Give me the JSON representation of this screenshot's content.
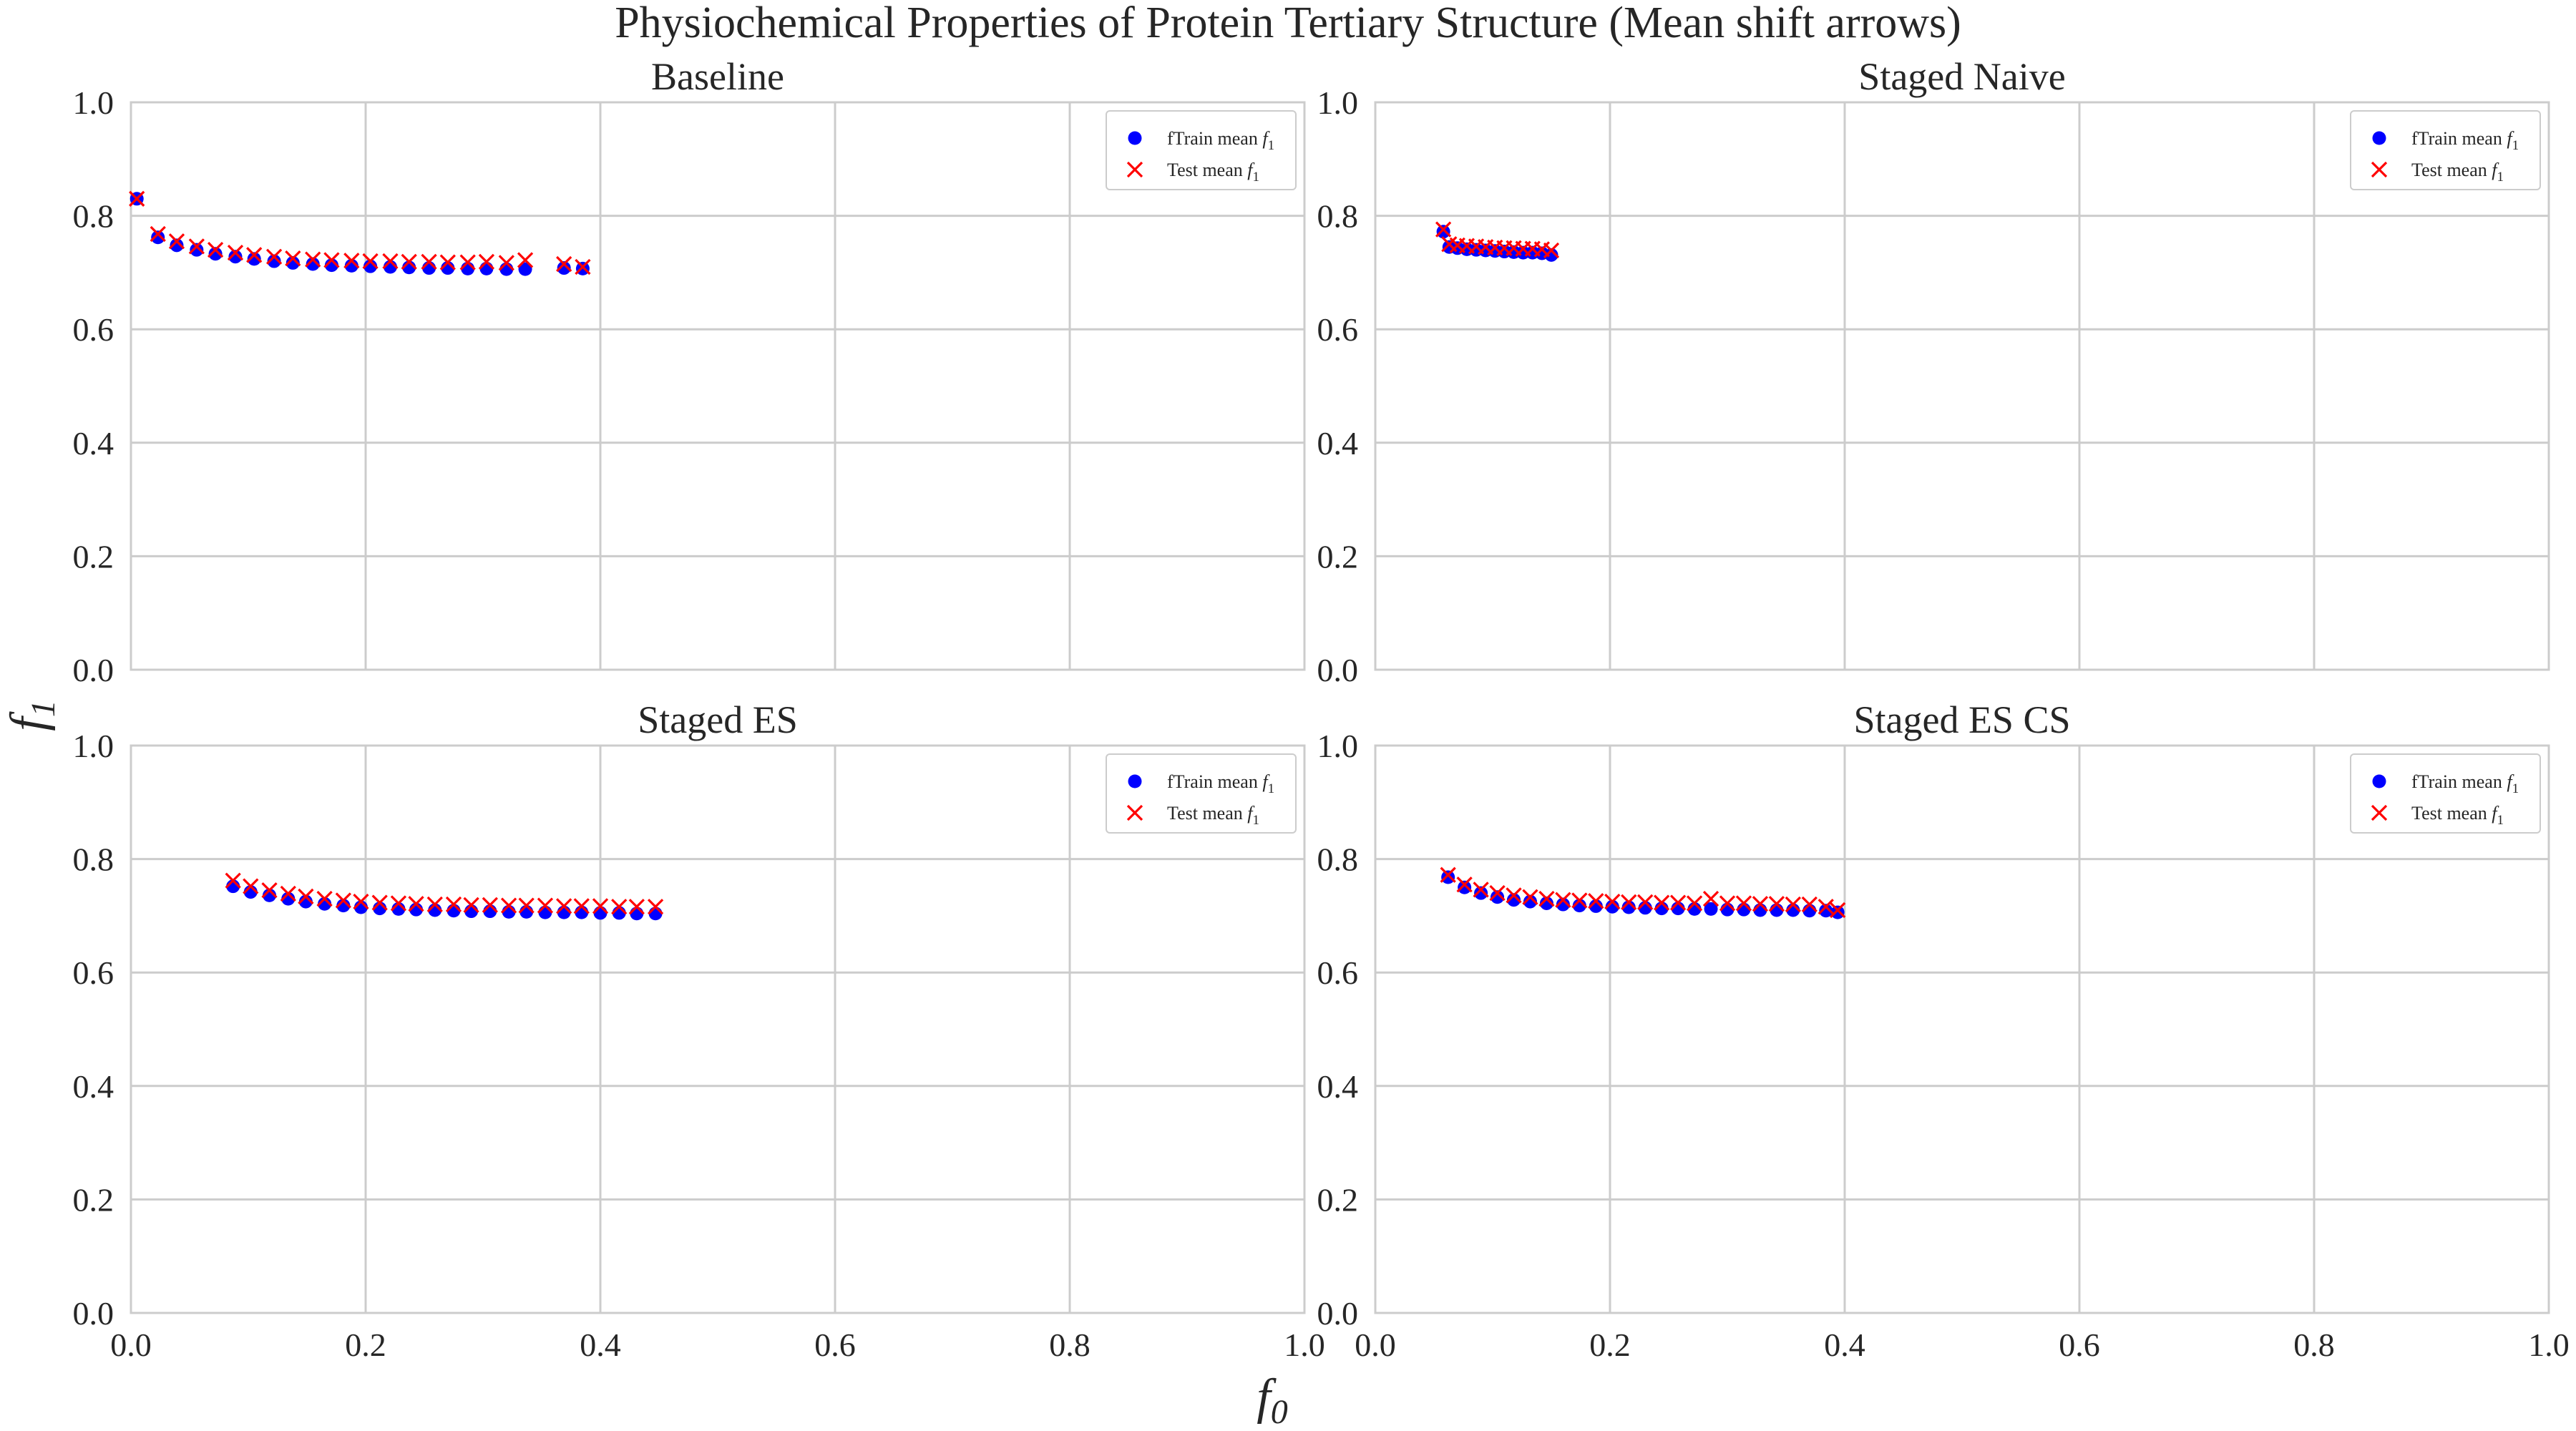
{
  "figure": {
    "title": "Physiochemical Properties of Protein Tertiary Structure (Mean shift arrows)",
    "xlabel": "f",
    "xlabel_sub": "0",
    "ylabel": "f",
    "ylabel_sub": "1"
  },
  "legend": {
    "train_label": "fTrain mean ",
    "test_label": "Test mean ",
    "label_math": "f",
    "label_sub": "1",
    "placement": "top-right"
  },
  "colors": {
    "train": "#0000ff",
    "test": "#ff0000",
    "grid": "#cccccc"
  },
  "chart_data": [
    {
      "type": "scatter",
      "title": "Baseline",
      "xlim": [
        0,
        1
      ],
      "ylim": [
        0,
        1
      ],
      "xticks": [
        "0.0",
        "0.2",
        "0.4",
        "0.6",
        "0.8",
        "1.0"
      ],
      "yticks": [
        "0.0",
        "0.2",
        "0.4",
        "0.6",
        "0.8",
        "1.0"
      ],
      "grid": true,
      "series": [
        {
          "name": "fTrain mean f1",
          "marker": "circle",
          "x": [
            0.005,
            0.023,
            0.039,
            0.056,
            0.072,
            0.089,
            0.105,
            0.122,
            0.138,
            0.155,
            0.171,
            0.188,
            0.204,
            0.221,
            0.237,
            0.254,
            0.27,
            0.287,
            0.303,
            0.32,
            0.336,
            0.369,
            0.385
          ],
          "y": [
            0.83,
            0.762,
            0.748,
            0.74,
            0.733,
            0.728,
            0.724,
            0.72,
            0.717,
            0.715,
            0.713,
            0.712,
            0.711,
            0.71,
            0.709,
            0.708,
            0.708,
            0.707,
            0.707,
            0.706,
            0.706,
            0.708,
            0.707
          ]
        },
        {
          "name": "Test mean f1",
          "marker": "x",
          "x": [
            0.005,
            0.023,
            0.039,
            0.056,
            0.072,
            0.089,
            0.105,
            0.122,
            0.138,
            0.155,
            0.171,
            0.188,
            0.204,
            0.221,
            0.237,
            0.254,
            0.27,
            0.287,
            0.303,
            0.32,
            0.336,
            0.369,
            0.385
          ],
          "y": [
            0.83,
            0.768,
            0.755,
            0.746,
            0.74,
            0.735,
            0.731,
            0.728,
            0.725,
            0.723,
            0.722,
            0.721,
            0.72,
            0.72,
            0.719,
            0.719,
            0.718,
            0.718,
            0.719,
            0.717,
            0.722,
            0.715,
            0.71
          ]
        }
      ]
    },
    {
      "type": "scatter",
      "title": "Staged Naive",
      "xlim": [
        0,
        1
      ],
      "ylim": [
        0,
        1
      ],
      "xticks": [
        "0.0",
        "0.2",
        "0.4",
        "0.6",
        "0.8",
        "1.0"
      ],
      "yticks": [
        "0.0",
        "0.2",
        "0.4",
        "0.6",
        "0.8",
        "1.0"
      ],
      "grid": true,
      "series": [
        {
          "name": "fTrain mean f1",
          "marker": "circle",
          "x": [
            0.058,
            0.063,
            0.07,
            0.078,
            0.086,
            0.094,
            0.102,
            0.11,
            0.118,
            0.126,
            0.134,
            0.142,
            0.15
          ],
          "y": [
            0.772,
            0.745,
            0.743,
            0.741,
            0.74,
            0.739,
            0.738,
            0.737,
            0.736,
            0.735,
            0.735,
            0.734,
            0.731
          ]
        },
        {
          "name": "Test mean f1",
          "marker": "x",
          "x": [
            0.058,
            0.063,
            0.07,
            0.078,
            0.086,
            0.094,
            0.102,
            0.11,
            0.118,
            0.126,
            0.134,
            0.142,
            0.15
          ],
          "y": [
            0.776,
            0.75,
            0.748,
            0.747,
            0.746,
            0.745,
            0.744,
            0.743,
            0.743,
            0.742,
            0.742,
            0.741,
            0.739
          ]
        }
      ]
    },
    {
      "type": "scatter",
      "title": "Staged ES",
      "xlim": [
        0,
        1
      ],
      "ylim": [
        0,
        1
      ],
      "xticks": [
        "0.0",
        "0.2",
        "0.4",
        "0.6",
        "0.8",
        "1.0"
      ],
      "yticks": [
        "0.0",
        "0.2",
        "0.4",
        "0.6",
        "0.8",
        "1.0"
      ],
      "grid": true,
      "series": [
        {
          "name": "fTrain mean f1",
          "marker": "circle",
          "x": [
            0.087,
            0.102,
            0.118,
            0.134,
            0.149,
            0.165,
            0.181,
            0.196,
            0.212,
            0.228,
            0.243,
            0.259,
            0.275,
            0.29,
            0.306,
            0.322,
            0.337,
            0.353,
            0.369,
            0.384,
            0.4,
            0.416,
            0.431,
            0.447
          ],
          "y": [
            0.752,
            0.742,
            0.736,
            0.73,
            0.725,
            0.721,
            0.718,
            0.715,
            0.713,
            0.712,
            0.711,
            0.71,
            0.709,
            0.708,
            0.708,
            0.707,
            0.707,
            0.706,
            0.706,
            0.706,
            0.705,
            0.705,
            0.704,
            0.704
          ]
        },
        {
          "name": "Test mean f1",
          "marker": "x",
          "x": [
            0.087,
            0.102,
            0.118,
            0.134,
            0.149,
            0.165,
            0.181,
            0.196,
            0.212,
            0.228,
            0.243,
            0.259,
            0.275,
            0.29,
            0.306,
            0.322,
            0.337,
            0.353,
            0.369,
            0.384,
            0.4,
            0.416,
            0.431,
            0.447
          ],
          "y": [
            0.762,
            0.752,
            0.745,
            0.739,
            0.734,
            0.73,
            0.727,
            0.725,
            0.723,
            0.722,
            0.721,
            0.72,
            0.72,
            0.719,
            0.719,
            0.718,
            0.718,
            0.718,
            0.717,
            0.717,
            0.717,
            0.716,
            0.716,
            0.716
          ]
        }
      ]
    },
    {
      "type": "scatter",
      "title": "Staged ES CS",
      "xlim": [
        0,
        1
      ],
      "ylim": [
        0,
        1
      ],
      "xticks": [
        "0.0",
        "0.2",
        "0.4",
        "0.6",
        "0.8",
        "1.0"
      ],
      "yticks": [
        "0.0",
        "0.2",
        "0.4",
        "0.6",
        "0.8",
        "1.0"
      ],
      "grid": true,
      "series": [
        {
          "name": "fTrain mean f1",
          "marker": "circle",
          "x": [
            0.062,
            0.076,
            0.09,
            0.104,
            0.118,
            0.132,
            0.146,
            0.16,
            0.174,
            0.188,
            0.202,
            0.216,
            0.23,
            0.244,
            0.258,
            0.272,
            0.286,
            0.3,
            0.314,
            0.328,
            0.342,
            0.356,
            0.37,
            0.384,
            0.394
          ],
          "y": [
            0.768,
            0.75,
            0.74,
            0.733,
            0.728,
            0.725,
            0.722,
            0.72,
            0.718,
            0.717,
            0.716,
            0.715,
            0.714,
            0.713,
            0.713,
            0.712,
            0.712,
            0.711,
            0.711,
            0.71,
            0.71,
            0.71,
            0.709,
            0.709,
            0.706
          ]
        },
        {
          "name": "Test mean f1",
          "marker": "x",
          "x": [
            0.062,
            0.076,
            0.09,
            0.104,
            0.118,
            0.132,
            0.146,
            0.16,
            0.174,
            0.188,
            0.202,
            0.216,
            0.23,
            0.244,
            0.258,
            0.272,
            0.286,
            0.3,
            0.314,
            0.328,
            0.342,
            0.356,
            0.37,
            0.384,
            0.394
          ],
          "y": [
            0.772,
            0.755,
            0.746,
            0.74,
            0.736,
            0.733,
            0.73,
            0.728,
            0.727,
            0.726,
            0.725,
            0.724,
            0.724,
            0.723,
            0.723,
            0.722,
            0.73,
            0.722,
            0.722,
            0.721,
            0.721,
            0.72,
            0.72,
            0.716,
            0.71
          ]
        }
      ]
    }
  ]
}
